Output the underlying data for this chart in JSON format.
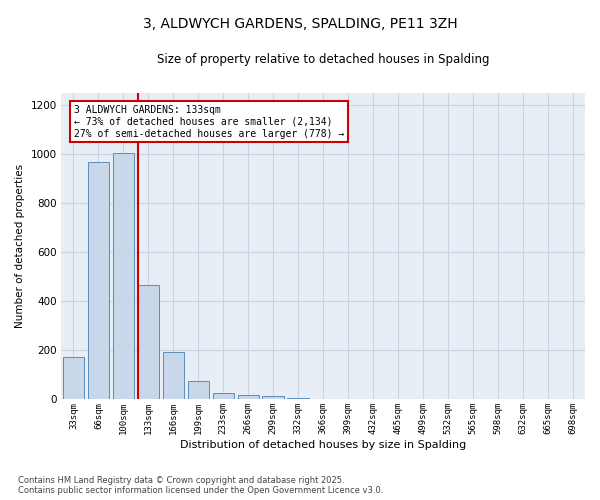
{
  "title": "3, ALDWYCH GARDENS, SPALDING, PE11 3ZH",
  "subtitle": "Size of property relative to detached houses in Spalding",
  "xlabel": "Distribution of detached houses by size in Spalding",
  "ylabel": "Number of detached properties",
  "bar_color": "#c8d8ea",
  "bar_edge_color": "#5b8db8",
  "grid_color": "#c8d4e0",
  "background_color": "#e8eef5",
  "categories": [
    "33sqm",
    "66sqm",
    "100sqm",
    "133sqm",
    "166sqm",
    "199sqm",
    "233sqm",
    "266sqm",
    "299sqm",
    "332sqm",
    "366sqm",
    "399sqm",
    "432sqm",
    "465sqm",
    "499sqm",
    "532sqm",
    "565sqm",
    "598sqm",
    "632sqm",
    "665sqm",
    "698sqm"
  ],
  "values": [
    175,
    970,
    1005,
    465,
    193,
    75,
    25,
    20,
    15,
    5,
    0,
    0,
    0,
    0,
    0,
    0,
    0,
    0,
    0,
    0,
    0
  ],
  "red_line_bin": 3,
  "red_line_color": "#cc0000",
  "annotation_title": "3 ALDWYCH GARDENS: 133sqm",
  "annotation_line1": "← 73% of detached houses are smaller (2,134)",
  "annotation_line2": "27% of semi-detached houses are larger (778) →",
  "ylim": [
    0,
    1250
  ],
  "yticks": [
    0,
    200,
    400,
    600,
    800,
    1000,
    1200
  ],
  "footnote1": "Contains HM Land Registry data © Crown copyright and database right 2025.",
  "footnote2": "Contains public sector information licensed under the Open Government Licence v3.0."
}
